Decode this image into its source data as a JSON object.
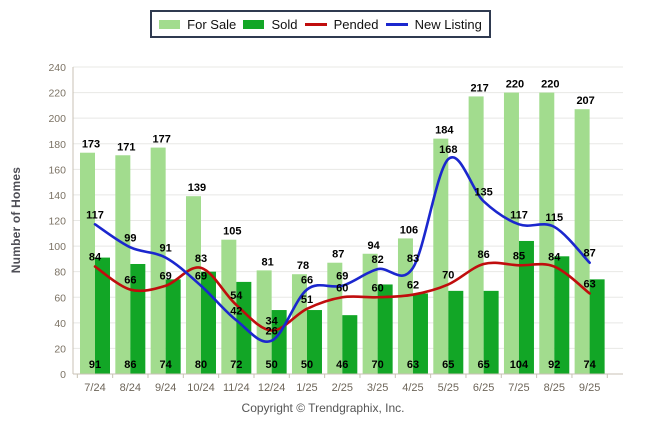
{
  "footer": {
    "text": "Copyright © Trendgraphix, Inc."
  },
  "colors": {
    "for_sale": "#A2DC8E",
    "sold": "#12A626",
    "pended": "#C00D0D",
    "new_listing": "#1B27CE",
    "legend_border": "#2F3A50",
    "grid": "#E8E8E5",
    "axis": "#C8C2B4",
    "tick_text": "#7B7264",
    "label_text": "#000000"
  },
  "chart_data": {
    "type": "bar",
    "subtype": "grouped bars with smooth line overlays",
    "title": "",
    "ylabel": "Number of Homes",
    "xlabel": "",
    "ylim": [
      0,
      240
    ],
    "y_ticks": [
      0,
      20,
      40,
      60,
      80,
      100,
      120,
      140,
      160,
      180,
      200,
      220,
      240
    ],
    "grid": "horizontal",
    "legend_position": "top-center",
    "categories": [
      "7/24",
      "8/24",
      "9/24",
      "10/24",
      "11/24",
      "12/24",
      "1/25",
      "2/25",
      "3/25",
      "4/25",
      "5/25",
      "6/25",
      "7/25",
      "8/25",
      "9/25"
    ],
    "series": [
      {
        "name": "For Sale",
        "type": "bar",
        "color": "#A2DC8E",
        "values": [
          173,
          171,
          177,
          139,
          105,
          81,
          78,
          87,
          94,
          106,
          184,
          217,
          220,
          220,
          207
        ]
      },
      {
        "name": "Sold",
        "type": "bar",
        "color": "#12A626",
        "values": [
          91,
          86,
          74,
          80,
          72,
          50,
          50,
          46,
          70,
          63,
          65,
          65,
          104,
          92,
          74
        ]
      },
      {
        "name": "Pended",
        "type": "line",
        "color": "#C00D0D",
        "values": [
          84,
          66,
          69,
          83,
          54,
          34,
          51,
          60,
          60,
          62,
          70,
          86,
          85,
          84,
          63
        ]
      },
      {
        "name": "New Listing",
        "type": "line",
        "color": "#1B27CE",
        "values": [
          117,
          99,
          91,
          69,
          42,
          26,
          66,
          69,
          82,
          83,
          168,
          135,
          117,
          115,
          87
        ]
      }
    ]
  }
}
